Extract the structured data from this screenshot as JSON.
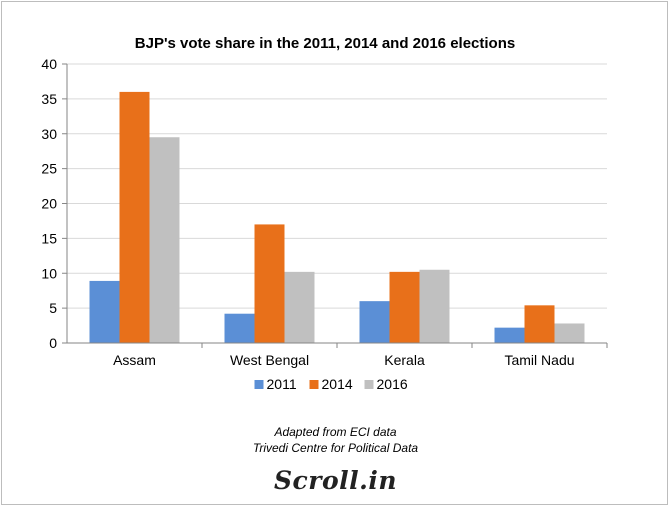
{
  "chart_data": {
    "type": "bar",
    "title": "BJP's vote share in the 2011, 2014 and 2016 elections",
    "categories": [
      "Assam",
      "West Bengal",
      "Kerala",
      "Tamil Nadu"
    ],
    "series": [
      {
        "name": "2011",
        "color": "#5b8fd6",
        "values": [
          8.9,
          4.2,
          6.0,
          2.2
        ]
      },
      {
        "name": "2014",
        "color": "#e8701a",
        "values": [
          36.0,
          17.0,
          10.2,
          5.4
        ]
      },
      {
        "name": "2016",
        "color": "#c0c0c0",
        "values": [
          29.5,
          10.2,
          10.5,
          2.8
        ]
      }
    ],
    "xlabel": "",
    "ylabel": "",
    "ylim": [
      0,
      40
    ],
    "yticks": [
      "0",
      "5",
      "10",
      "15",
      "20",
      "25",
      "30",
      "35",
      "40"
    ],
    "grid": true,
    "legend_position": "bottom"
  },
  "source": {
    "line1": "Adapted from ECI data",
    "line2": "Trivedi Centre for Political Data"
  },
  "logo": "Scroll.in"
}
